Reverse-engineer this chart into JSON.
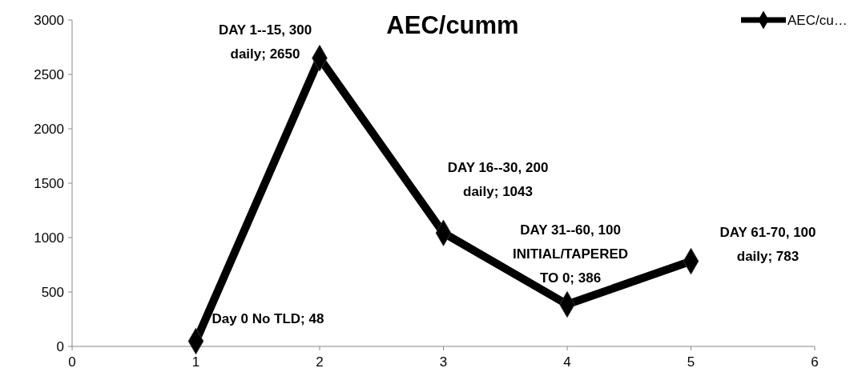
{
  "chart_data": {
    "type": "line",
    "title": "AEC/cumm",
    "x": [
      1,
      2,
      3,
      4,
      5
    ],
    "series": [
      {
        "name": "AEC/cu…",
        "color": "#000000",
        "values": [
          48,
          2650,
          1043,
          386,
          783
        ]
      }
    ],
    "xlim": [
      0,
      6
    ],
    "xticks": [
      0,
      1,
      2,
      3,
      4,
      5,
      6
    ],
    "ylim": [
      0,
      3000
    ],
    "yticks": [
      0,
      500,
      1000,
      1500,
      2000,
      2500,
      3000
    ],
    "marker": "diamond",
    "line_style": "solid",
    "legend": "top right",
    "annotations": [
      {
        "text": "Day 0 No TLD; 48",
        "x": 1,
        "y": 48
      },
      {
        "text": "DAY 1--15, 300\ndaily; 2650",
        "x": 2,
        "y": 2650
      },
      {
        "text": "DAY 16--30, 200\ndaily; 1043",
        "x": 3,
        "y": 1043
      },
      {
        "text": "DAY 31--60, 100\nINITIAL/TAPERED\nTO 0; 386",
        "x": 4,
        "y": 386
      },
      {
        "text": "DAY 61-70, 100\ndaily; 783",
        "x": 5,
        "y": 783
      }
    ]
  }
}
